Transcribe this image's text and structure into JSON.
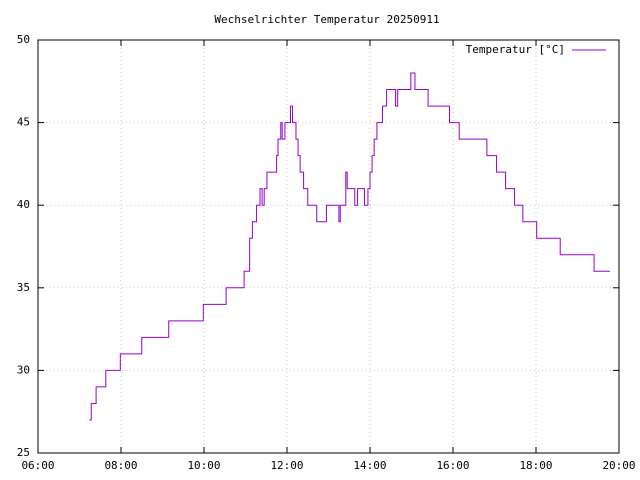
{
  "chart_data": {
    "type": "line",
    "title": "Wechselrichter Temperatur 20250911",
    "xlim": [
      "06:00",
      "20:00"
    ],
    "xticks": [
      "06:00",
      "08:00",
      "10:00",
      "12:00",
      "14:00",
      "16:00",
      "18:00",
      "20:00"
    ],
    "ylim": [
      25,
      50
    ],
    "yticks": [
      25,
      30,
      35,
      40,
      45,
      50
    ],
    "grid": true,
    "legend": "top-right",
    "series": [
      {
        "name": "Temperatur [°C]",
        "color": "#9400d3",
        "x": [
          "07:14",
          "07:17",
          "07:17",
          "07:24",
          "07:24",
          "07:38",
          "07:38",
          "07:59",
          "07:59",
          "08:30",
          "08:30",
          "09:09",
          "09:09",
          "09:59",
          "09:59",
          "10:32",
          "10:32",
          "10:58",
          "10:58",
          "11:06",
          "11:06",
          "11:10",
          "11:10",
          "11:16",
          "11:16",
          "11:21",
          "11:21",
          "11:24",
          "11:24",
          "11:27",
          "11:27",
          "11:31",
          "11:31",
          "11:45",
          "11:45",
          "11:47",
          "11:47",
          "11:51",
          "11:51",
          "11:53",
          "11:53",
          "11:57",
          "11:57",
          "12:05",
          "12:05",
          "12:08",
          "12:08",
          "12:13",
          "12:13",
          "12:16",
          "12:16",
          "12:19",
          "12:19",
          "12:24",
          "12:24",
          "12:30",
          "12:30",
          "12:43",
          "12:43",
          "12:57",
          "12:57",
          "13:15",
          "13:15",
          "13:17",
          "13:17",
          "13:25",
          "13:25",
          "13:27",
          "13:27",
          "13:38",
          "13:38",
          "13:42",
          "13:42",
          "13:52",
          "13:52",
          "13:57",
          "13:57",
          "14:00",
          "14:00",
          "14:03",
          "14:03",
          "14:06",
          "14:06",
          "14:10",
          "14:10",
          "14:18",
          "14:18",
          "14:24",
          "14:24",
          "14:37",
          "14:37",
          "14:40",
          "14:40",
          "14:59",
          "14:59",
          "15:05",
          "15:05",
          "15:24",
          "15:24",
          "15:55",
          "15:55",
          "16:09",
          "16:09",
          "16:49",
          "16:49",
          "17:03",
          "17:03",
          "17:16",
          "17:16",
          "17:29",
          "17:29",
          "17:41",
          "17:41",
          "18:01",
          "18:01",
          "18:35",
          "18:35",
          "19:24",
          "19:24",
          "19:47"
        ],
        "values": [
          27,
          27,
          28,
          28,
          29,
          29,
          30,
          30,
          31,
          31,
          32,
          32,
          33,
          33,
          34,
          34,
          35,
          35,
          36,
          36,
          38,
          38,
          39,
          39,
          40,
          40,
          41,
          41,
          40,
          40,
          41,
          41,
          42,
          42,
          43,
          43,
          44,
          44,
          45,
          45,
          44,
          44,
          45,
          45,
          46,
          46,
          45,
          45,
          44,
          44,
          43,
          43,
          42,
          42,
          41,
          41,
          40,
          40,
          39,
          39,
          40,
          40,
          39,
          39,
          40,
          40,
          42,
          42,
          41,
          41,
          40,
          40,
          41,
          41,
          40,
          40,
          41,
          41,
          42,
          42,
          43,
          43,
          44,
          44,
          45,
          45,
          46,
          46,
          47,
          47,
          46,
          46,
          47,
          47,
          48,
          48,
          47,
          47,
          46,
          46,
          45,
          45,
          44,
          44,
          43,
          43,
          42,
          42,
          41,
          41,
          40,
          40,
          39,
          39,
          38,
          38,
          37,
          37,
          36,
          36
        ]
      }
    ]
  }
}
